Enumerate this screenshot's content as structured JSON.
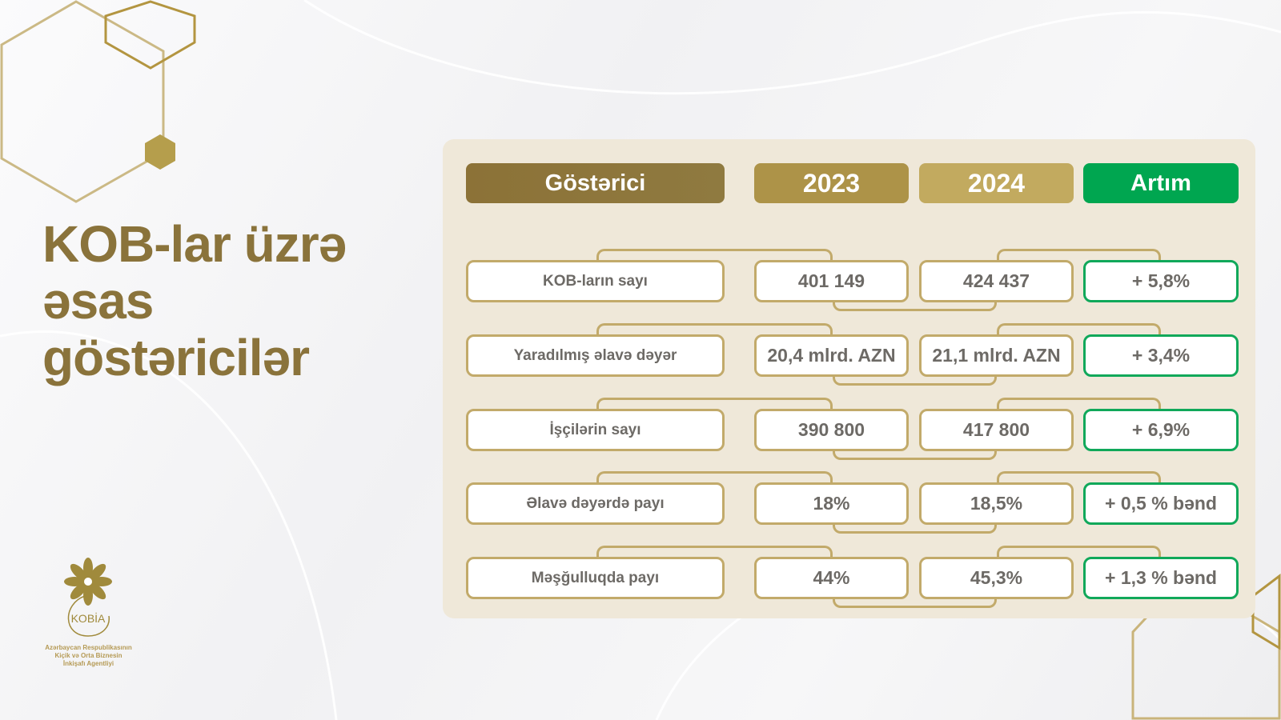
{
  "title": {
    "lines": [
      "KOB-lar üzrə",
      "əsas",
      "göstəricilər"
    ]
  },
  "logo": {
    "name": "KOBİA",
    "caption": [
      "Azərbaycan Respublikasının",
      "Kiçik və Orta Biznesin",
      "İnkişafı Agentliyi"
    ]
  },
  "colors": {
    "gold_dark": "#8c733a",
    "gold": "#ad9348",
    "gold_light": "#c2aa5f",
    "green": "#00a650",
    "panel": "#efe8d9"
  },
  "table": {
    "headers": [
      "Göstərici",
      "2023",
      "2024",
      "Artım"
    ],
    "rows": [
      {
        "label": "KOB-ların sayı",
        "y2023": "401 149",
        "y2024": "424 437",
        "growth": "+ 5,8%"
      },
      {
        "label": "Yaradılmış əlavə dəyər",
        "y2023": "20,4 mlrd. AZN",
        "y2024": "21,1 mlrd. AZN",
        "growth": "+ 3,4%"
      },
      {
        "label": "İşçilərin sayı",
        "y2023": "390 800",
        "y2024": "417 800",
        "growth": "+ 6,9%"
      },
      {
        "label": "Əlavə dəyərdə payı",
        "y2023": "18%",
        "y2024": "18,5%",
        "growth": "+ 0,5 % bənd"
      },
      {
        "label": "Məşğulluqda payı",
        "y2023": "44%",
        "y2024": "45,3%",
        "growth": "+ 1,3 % bənd"
      }
    ]
  }
}
